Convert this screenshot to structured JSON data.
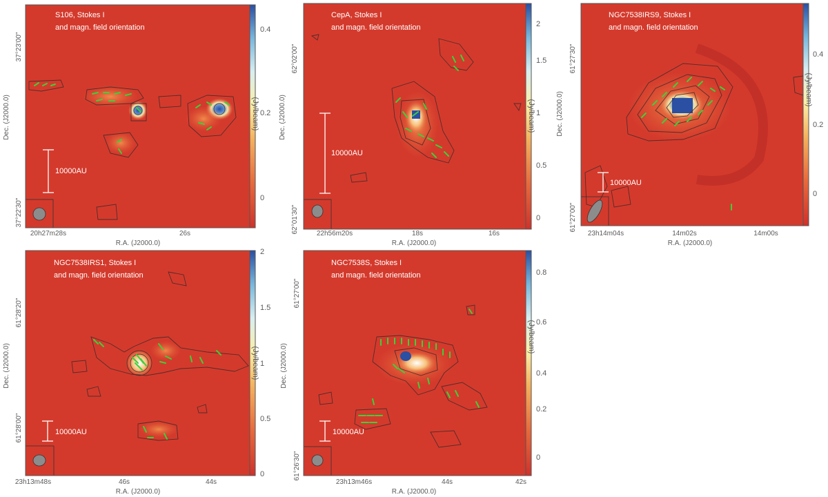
{
  "colorbar_unit": "(Jy/beam)",
  "panels": [
    {
      "title": "S106, Stokes I",
      "subtitle": "and magn. field orientation",
      "scale_label": "10000AU",
      "xlabel": "R.A. (J2000.0)",
      "ylabel": "Dec. (J2000.0)",
      "xticks": [
        "20h27m28s",
        "26s"
      ],
      "yticks": [
        "37°23'00\"",
        "37°22'30\""
      ],
      "colorbar_ticks": [
        "0.4",
        "0.2",
        "0"
      ]
    },
    {
      "title": "CepA, Stokes I",
      "subtitle": "and magn. field orientation",
      "scale_label": "10000AU",
      "xlabel": "R.A. (J2000.0)",
      "ylabel": "Dec. (J2000.0)",
      "xticks": [
        "22h56m20s",
        "18s",
        "16s"
      ],
      "yticks": [
        "62°02'00\"",
        "62°01'30\""
      ],
      "colorbar_ticks": [
        "2",
        "1.5",
        "1",
        "0.5",
        "0"
      ]
    },
    {
      "title": "NGC7538IRS9, Stokes I",
      "subtitle": "and magn. field orientation",
      "scale_label": "10000AU",
      "xlabel": "R.A. (J2000.0)",
      "ylabel": "Dec. (J2000.0)",
      "xticks": [
        "23h14m04s",
        "14m02s",
        "14m00s"
      ],
      "yticks": [
        "61°27'30\"",
        "61°27'00\""
      ],
      "colorbar_ticks": [
        "0.4",
        "0.2",
        "0"
      ]
    },
    {
      "title": "NGC7538IRS1, Stokes I",
      "subtitle": "and magn. field orientation",
      "scale_label": "10000AU",
      "xlabel": "R.A. (J2000.0)",
      "ylabel": "Dec. (J2000.0)",
      "xticks": [
        "23h13m48s",
        "46s",
        "44s"
      ],
      "yticks": [
        "61°28'20\"",
        "61°28'00\""
      ],
      "colorbar_ticks": [
        "2",
        "1.5",
        "1",
        "0.5",
        "0"
      ]
    },
    {
      "title": "NGC7538S, Stokes I",
      "subtitle": "and magn. field orientation",
      "scale_label": "10000AU",
      "xlabel": "R.A. (J2000.0)",
      "ylabel": "Dec. (J2000.0)",
      "xticks": [
        "23h13m46s",
        "44s",
        "42s"
      ],
      "yticks": [
        "61°27'00\"",
        "61°26'30\""
      ],
      "colorbar_ticks": [
        "0.8",
        "0.6",
        "0.4",
        "0.2",
        "0"
      ]
    }
  ]
}
